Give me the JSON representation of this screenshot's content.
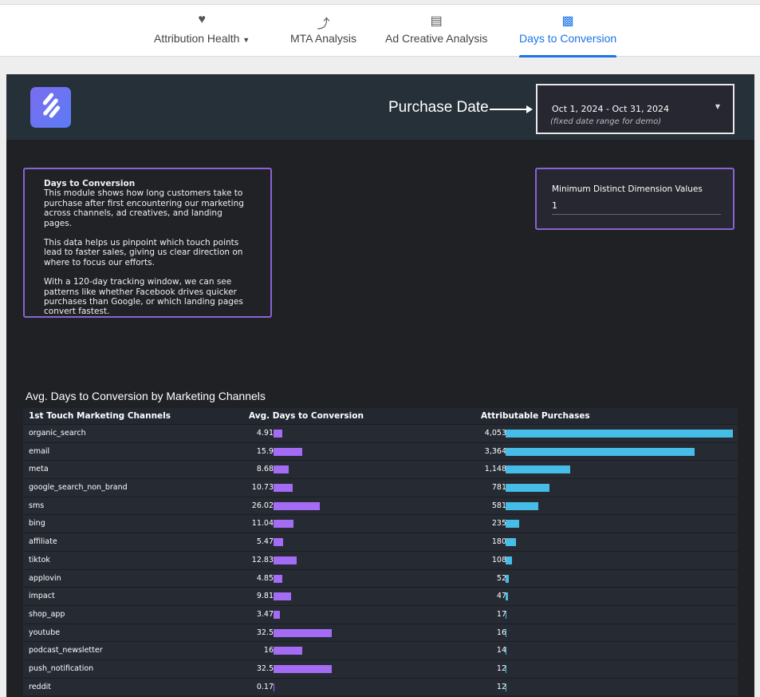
{
  "nav": {
    "tabs": [
      {
        "label": "Attribution Health",
        "icon": "heart-icon",
        "dropdown": true
      },
      {
        "label": "MTA Analysis",
        "icon": "sparkline-icon"
      },
      {
        "label": "Ad Creative Analysis",
        "icon": "bar-chart-icon"
      },
      {
        "label": "Days to Conversion",
        "icon": "calendar-icon",
        "active": true
      }
    ],
    "accent": "#1a73e8"
  },
  "header": {
    "purchase_date_label": "Purchase Date",
    "date_range": "Oct 1, 2024 - Oct 31, 2024",
    "date_note": "(fixed date range for demo)"
  },
  "description": {
    "title": "Days to Conversion",
    "p1": "This module shows how long customers take to purchase after first encountering our marketing across channels, ad creatives, and landing pages.",
    "p2": "This data helps us pinpoint which touch points lead to faster sales, giving us clear direction on where to focus our efforts.",
    "p3": "With a 120-day tracking window, we can see patterns like whether Facebook drives quicker purchases than Google, or which landing pages convert fastest."
  },
  "min_dim": {
    "label": "Minimum Distinct Dimension Values",
    "value": "1"
  },
  "table": {
    "title": "Avg. Days to Conversion by Marketing Channels",
    "columns": [
      "1st Touch Marketing Channels",
      "Avg. Days to Conversion",
      "Attributable Purchases"
    ],
    "colors": {
      "days": "#a46cf5",
      "purchases": "#45bde6"
    },
    "rows": [
      {
        "channel": "organic_search",
        "days": "4.91",
        "purchases": "4,053"
      },
      {
        "channel": "email",
        "days": "15.9",
        "purchases": "3,364"
      },
      {
        "channel": "meta",
        "days": "8.68",
        "purchases": "1,148"
      },
      {
        "channel": "google_search_non_brand",
        "days": "10.73",
        "purchases": "781"
      },
      {
        "channel": "sms",
        "days": "26.02",
        "purchases": "581"
      },
      {
        "channel": "bing",
        "days": "11.04",
        "purchases": "235"
      },
      {
        "channel": "affiliate",
        "days": "5.47",
        "purchases": "180"
      },
      {
        "channel": "tiktok",
        "days": "12.83",
        "purchases": "108"
      },
      {
        "channel": "applovin",
        "days": "4.85",
        "purchases": "52"
      },
      {
        "channel": "impact",
        "days": "9.81",
        "purchases": "47"
      },
      {
        "channel": "shop_app",
        "days": "3.47",
        "purchases": "17"
      },
      {
        "channel": "youtube",
        "days": "32.5",
        "purchases": "16"
      },
      {
        "channel": "podcast_newsletter",
        "days": "16",
        "purchases": "14"
      },
      {
        "channel": "push_notification",
        "days": "32.5",
        "purchases": "12"
      },
      {
        "channel": "reddit",
        "days": "0.17",
        "purchases": "12"
      }
    ]
  }
}
